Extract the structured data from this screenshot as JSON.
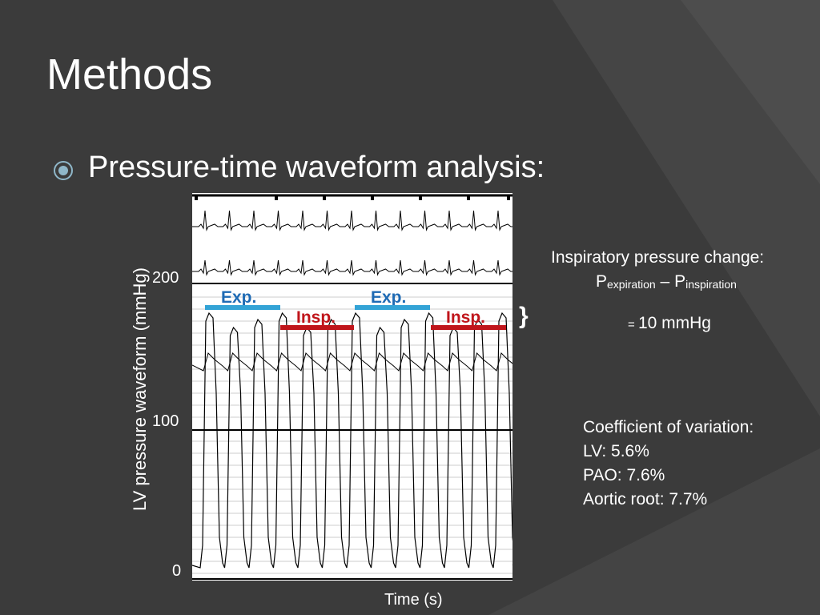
{
  "slide": {
    "title": "Methods",
    "bullet": "Pressure-time waveform analysis:"
  },
  "figure": {
    "y_axis_label": "LV pressure waveform (mmHg)",
    "x_axis_label": "Time (s)",
    "y_ticks": [
      "200",
      "100",
      "0"
    ],
    "phases": [
      {
        "kind": "exp",
        "label": "Exp."
      },
      {
        "kind": "insp",
        "label": "Insp."
      },
      {
        "kind": "exp",
        "label": "Exp."
      },
      {
        "kind": "insp",
        "label": "Insp."
      }
    ],
    "brace": "}"
  },
  "annotation": {
    "heading": "Inspiratory pressure change:",
    "p_symbol": "P",
    "p_exp_sub": "expiration",
    "minus": " – ",
    "p_insp_sub": "inspiration",
    "result_eq": "= ",
    "result_value": "10 mmHg"
  },
  "coefficient": {
    "heading": "Coefficient of variation:",
    "items": [
      "LV: 5.6%",
      "PAO: 7.6%",
      "Aortic root: 7.7%"
    ]
  },
  "colors": {
    "background": "#3b3b3b",
    "exp_text": "#1e6ab4",
    "exp_bar": "#33a3d6",
    "insp": "#c0151b"
  }
}
